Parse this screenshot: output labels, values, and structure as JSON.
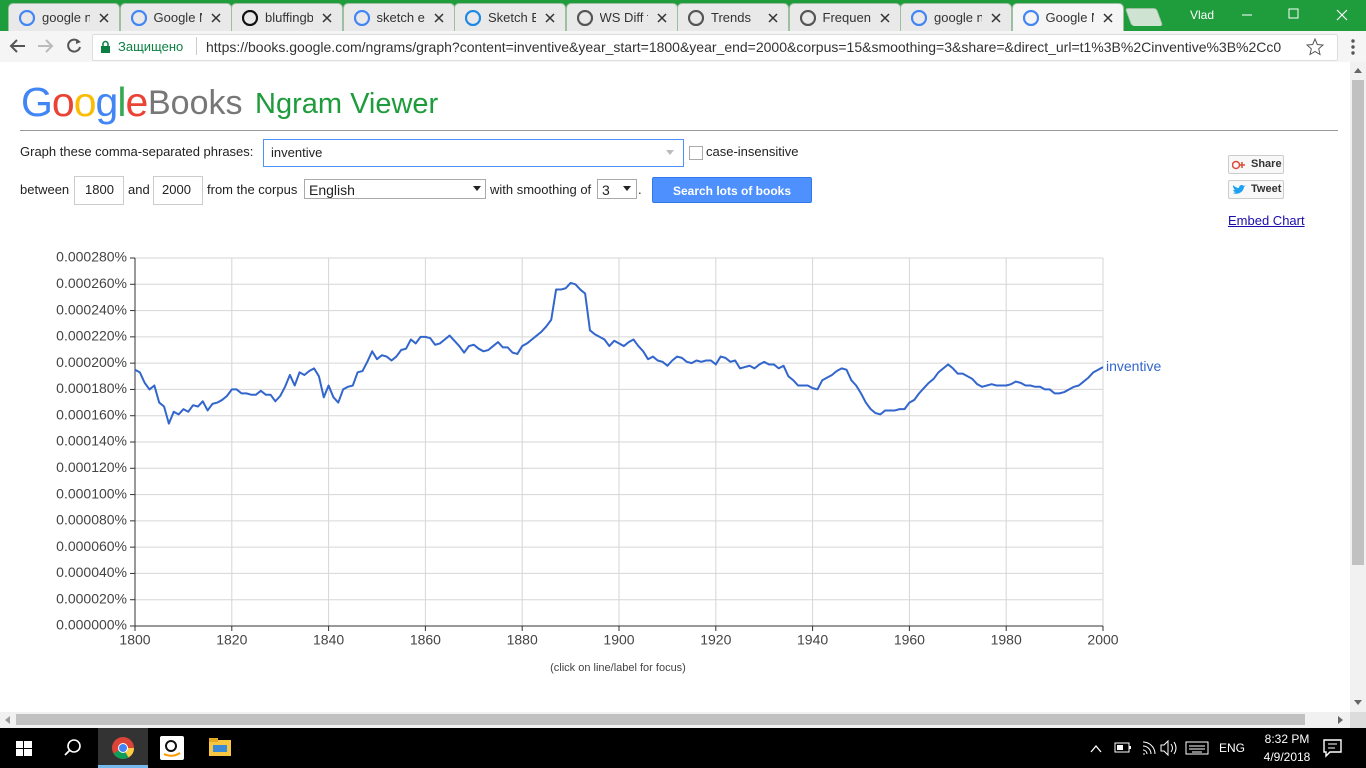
{
  "browser": {
    "tabs": [
      "google ng",
      "Google N",
      "bluffingb",
      "sketch en",
      "Sketch En",
      "WS Diff fo",
      "Trends",
      "Frequenc",
      "google ng",
      "Google N"
    ],
    "user": "Vlad",
    "secure_label": "Защищено",
    "url": "https://books.google.com/ngrams/graph?content=inventive&year_start=1800&year_end=2000&corpus=15&smoothing=3&share=&direct_url=t1%3B%2Cinventive%3B%2Cc0"
  },
  "header": {
    "logo_google": "Google",
    "logo_books": "Books",
    "title": "Ngram Viewer"
  },
  "form": {
    "phrases_label": "Graph these comma-separated phrases:",
    "phrases": "inventive",
    "case_label": "case-insensitive",
    "between_label": "between",
    "year_start": "1800",
    "and_label": "and",
    "year_end": "2000",
    "corpus_label": "from the corpus",
    "corpus": "English",
    "smoothing_label": "with smoothing of",
    "smoothing": "3",
    "period": ".",
    "button": "Search lots of books",
    "share": "Share",
    "tweet": "Tweet",
    "embed": "Embed Chart"
  },
  "chart_data": {
    "type": "line",
    "note": "(click on line/label for focus)",
    "grid": true,
    "xlim": [
      1800,
      2000
    ],
    "xticks": [
      1800,
      1820,
      1840,
      1860,
      1880,
      1900,
      1920,
      1940,
      1960,
      1980,
      2000
    ],
    "ylim": [
      0,
      0.00028
    ],
    "yticks": [
      {
        "value": 0,
        "label": "0.000000%"
      },
      {
        "value": 2e-05,
        "label": "0.000020%"
      },
      {
        "value": 4e-05,
        "label": "0.000040%"
      },
      {
        "value": 6e-05,
        "label": "0.000060%"
      },
      {
        "value": 8e-05,
        "label": "0.000080%"
      },
      {
        "value": 0.0001,
        "label": "0.000100%"
      },
      {
        "value": 0.00012,
        "label": "0.000120%"
      },
      {
        "value": 0.00014,
        "label": "0.000140%"
      },
      {
        "value": 0.00016,
        "label": "0.000160%"
      },
      {
        "value": 0.00018,
        "label": "0.000180%"
      },
      {
        "value": 0.0002,
        "label": "0.000200%"
      },
      {
        "value": 0.00022,
        "label": "0.000220%"
      },
      {
        "value": 0.00024,
        "label": "0.000240%"
      },
      {
        "value": 0.00026,
        "label": "0.000260%"
      },
      {
        "value": 0.00028,
        "label": "0.000280%"
      }
    ],
    "x": [
      1800,
      1801,
      1802,
      1803,
      1804,
      1805,
      1806,
      1807,
      1808,
      1809,
      1810,
      1811,
      1812,
      1813,
      1814,
      1815,
      1816,
      1817,
      1818,
      1819,
      1820,
      1821,
      1822,
      1823,
      1824,
      1825,
      1826,
      1827,
      1828,
      1829,
      1830,
      1831,
      1832,
      1833,
      1834,
      1835,
      1836,
      1837,
      1838,
      1839,
      1840,
      1841,
      1842,
      1843,
      1844,
      1845,
      1846,
      1847,
      1848,
      1849,
      1850,
      1851,
      1852,
      1853,
      1854,
      1855,
      1856,
      1857,
      1858,
      1859,
      1860,
      1861,
      1862,
      1863,
      1864,
      1865,
      1866,
      1867,
      1868,
      1869,
      1870,
      1871,
      1872,
      1873,
      1874,
      1875,
      1876,
      1877,
      1878,
      1879,
      1880,
      1881,
      1882,
      1883,
      1884,
      1885,
      1886,
      1887,
      1888,
      1889,
      1890,
      1891,
      1892,
      1893,
      1894,
      1895,
      1896,
      1897,
      1898,
      1899,
      1900,
      1901,
      1902,
      1903,
      1904,
      1905,
      1906,
      1907,
      1908,
      1909,
      1910,
      1911,
      1912,
      1913,
      1914,
      1915,
      1916,
      1917,
      1918,
      1919,
      1920,
      1921,
      1922,
      1923,
      1924,
      1925,
      1926,
      1927,
      1928,
      1929,
      1930,
      1931,
      1932,
      1933,
      1934,
      1935,
      1936,
      1937,
      1938,
      1939,
      1940,
      1941,
      1942,
      1943,
      1944,
      1945,
      1946,
      1947,
      1948,
      1949,
      1950,
      1951,
      1952,
      1953,
      1954,
      1955,
      1956,
      1957,
      1958,
      1959,
      1960,
      1961,
      1962,
      1963,
      1964,
      1965,
      1966,
      1967,
      1968,
      1969,
      1970,
      1971,
      1972,
      1973,
      1974,
      1975,
      1976,
      1977,
      1978,
      1979,
      1980,
      1981,
      1982,
      1983,
      1984,
      1985,
      1986,
      1987,
      1988,
      1989,
      1990,
      1991,
      1992,
      1993,
      1994,
      1995,
      1996,
      1997,
      1998,
      1999,
      2000
    ],
    "series": [
      {
        "name": "inventive",
        "color": "#3366cc",
        "values": [
          0.000195,
          0.000193,
          0.000185,
          0.00018,
          0.000183,
          0.00017,
          0.000167,
          0.000154,
          0.000163,
          0.000161,
          0.000165,
          0.000163,
          0.000168,
          0.000167,
          0.000171,
          0.000164,
          0.000169,
          0.00017,
          0.000172,
          0.000175,
          0.00018,
          0.00018,
          0.000177,
          0.000177,
          0.000176,
          0.000176,
          0.000179,
          0.000176,
          0.000176,
          0.000171,
          0.000175,
          0.000182,
          0.000191,
          0.000183,
          0.000193,
          0.000191,
          0.000194,
          0.000196,
          0.00019,
          0.000174,
          0.000183,
          0.000174,
          0.00017,
          0.00018,
          0.000182,
          0.000183,
          0.000193,
          0.000194,
          0.000201,
          0.000209,
          0.000203,
          0.000206,
          0.000205,
          0.000202,
          0.000205,
          0.00021,
          0.000211,
          0.000218,
          0.000215,
          0.00022,
          0.00022,
          0.000219,
          0.000214,
          0.000215,
          0.000218,
          0.000221,
          0.000217,
          0.000213,
          0.000208,
          0.000213,
          0.000214,
          0.000211,
          0.000209,
          0.00021,
          0.000213,
          0.000216,
          0.000212,
          0.000212,
          0.000208,
          0.000207,
          0.000213,
          0.000215,
          0.000218,
          0.000221,
          0.000224,
          0.000228,
          0.000233,
          0.000256,
          0.000256,
          0.000257,
          0.000261,
          0.00026,
          0.000256,
          0.000253,
          0.000225,
          0.000222,
          0.00022,
          0.000218,
          0.000213,
          0.000217,
          0.000215,
          0.000213,
          0.000216,
          0.000218,
          0.000213,
          0.000209,
          0.000203,
          0.000205,
          0.000202,
          0.000201,
          0.000198,
          0.000202,
          0.000205,
          0.000204,
          0.000201,
          0.0002,
          0.000202,
          0.000201,
          0.000202,
          0.000202,
          0.000199,
          0.000205,
          0.000204,
          0.000201,
          0.000202,
          0.000196,
          0.000197,
          0.000198,
          0.000196,
          0.000199,
          0.000201,
          0.000199,
          0.000199,
          0.000196,
          0.000198,
          0.00019,
          0.000187,
          0.000183,
          0.000183,
          0.000183,
          0.000181,
          0.00018,
          0.000187,
          0.000189,
          0.000191,
          0.000194,
          0.000196,
          0.000195,
          0.000187,
          0.000183,
          0.000177,
          0.00017,
          0.000165,
          0.000162,
          0.000161,
          0.000164,
          0.000164,
          0.000164,
          0.000165,
          0.000165,
          0.00017,
          0.000172,
          0.000177,
          0.000181,
          0.000185,
          0.000188,
          0.000193,
          0.000196,
          0.000199,
          0.000196,
          0.000192,
          0.000192,
          0.00019,
          0.000188,
          0.000184,
          0.000182,
          0.000183,
          0.000184,
          0.000183,
          0.000183,
          0.000183,
          0.000184,
          0.000186,
          0.000185,
          0.000183,
          0.000183,
          0.000182,
          0.000182,
          0.00018,
          0.00018,
          0.000177,
          0.000177,
          0.000178,
          0.00018,
          0.000182,
          0.000183,
          0.000186,
          0.000189,
          0.000193,
          0.000195,
          0.000197
        ]
      }
    ]
  },
  "taskbar": {
    "language": "ENG",
    "time": "8:32 PM",
    "date": "4/9/2018"
  }
}
